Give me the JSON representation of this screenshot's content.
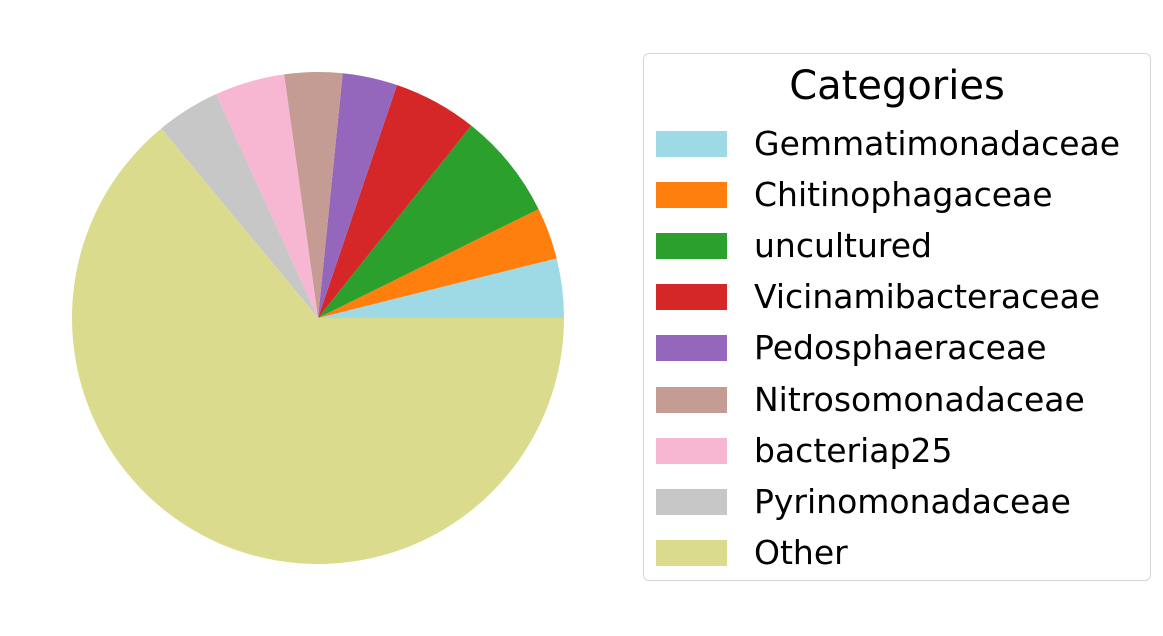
{
  "chart_data": {
    "type": "pie",
    "title": "",
    "legend": {
      "title": "Categories",
      "placement": "right"
    },
    "slices": [
      {
        "label": "Gemmatimonadaceae",
        "value": 3.9,
        "color": "#9edae5"
      },
      {
        "label": "Chitinophagaceae",
        "value": 3.4,
        "color": "#ff7f0e"
      },
      {
        "label": "uncultured",
        "value": 7.0,
        "color": "#2ca02c"
      },
      {
        "label": "Vicinamibacteraceae",
        "value": 5.5,
        "color": "#d62728"
      },
      {
        "label": "Pedosphaeraceae",
        "value": 3.6,
        "color": "#9467bd"
      },
      {
        "label": "Nitrosomonadaceae",
        "value": 3.8,
        "color": "#c49c94"
      },
      {
        "label": "bacteriap25",
        "value": 4.6,
        "color": "#f7b6d2"
      },
      {
        "label": "Pyrinomonadaceae",
        "value": 4.2,
        "color": "#c7c7c7"
      },
      {
        "label": "Other",
        "value": 64.0,
        "color": "#dbdb8d"
      }
    ],
    "start_angle_deg": 0,
    "direction": "counterclockwise"
  }
}
